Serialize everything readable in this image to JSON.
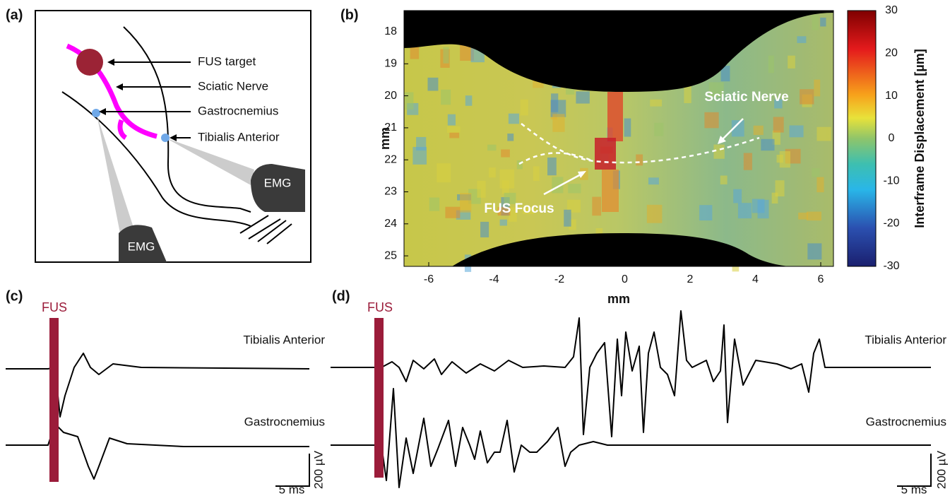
{
  "panels": {
    "a": {
      "label": "(a)",
      "labels": [
        "FUS target",
        "Sciatic Nerve",
        "Gastrocnemius",
        "Tibialis Anterior"
      ],
      "emg": [
        "EMG",
        "EMG"
      ]
    },
    "b": {
      "label": "(b)",
      "xlabel": "mm",
      "ylabel": "mm",
      "xticks": [
        "-6",
        "-4",
        "-2",
        "0",
        "2",
        "4",
        "6"
      ],
      "yticks": [
        "18",
        "19",
        "20",
        "21",
        "22",
        "23",
        "24",
        "25"
      ],
      "annotations": [
        "Sciatic Nerve",
        "FUS Focus"
      ],
      "colorbar_label": "Interframe Displacement [µm]",
      "colorbar_ticks": [
        "30",
        "20",
        "10",
        "0",
        "-10",
        "-20",
        "-30"
      ]
    },
    "c": {
      "label": "(c)",
      "stimulus": "FUS",
      "traces": [
        "Tibialis Anterior",
        "Gastrocnemius"
      ],
      "scale_x": "5 ms",
      "scale_y": "200 µV"
    },
    "d": {
      "label": "(d)",
      "stimulus": "FUS",
      "traces": [
        "Tibialis Anterior",
        "Gastrocnemius"
      ],
      "scale_x": "5 ms",
      "scale_y": "200 µV"
    }
  }
}
